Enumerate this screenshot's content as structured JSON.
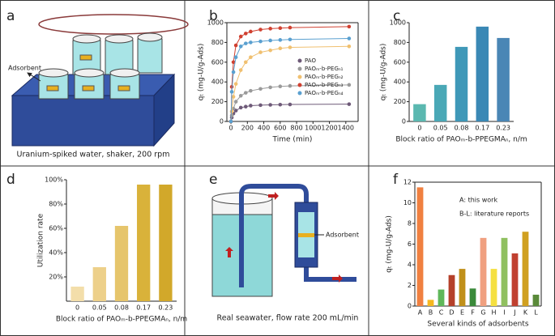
{
  "illustrations": [
    {
      "panel": "a",
      "label": "Adsorbent",
      "caption": "Uranium-spiked water, shaker, 200 rpm"
    },
    {
      "panel": "e",
      "label": "Adsorbent",
      "caption": "Real seawater, flow rate 200 mL/min"
    }
  ],
  "chart_data": [
    {
      "panel": "b",
      "type": "line",
      "frame": true,
      "xlabel": "Time (min)",
      "ylabel": "qₜ (mg-U/g-Ads)",
      "x": [
        0,
        10,
        30,
        60,
        120,
        180,
        240,
        360,
        480,
        600,
        720,
        1440
      ],
      "xlim": [
        -50,
        1550
      ],
      "xticks": [
        0,
        200,
        400,
        600,
        800,
        1000,
        1200,
        1400
      ],
      "ylim": [
        0,
        1000
      ],
      "yticks": [
        0,
        200,
        400,
        600,
        800,
        1000
      ],
      "series": [
        {
          "name": "PAO",
          "color": "#6e5a78",
          "values": [
            0,
            40,
            80,
            110,
            140,
            150,
            160,
            165,
            168,
            170,
            172,
            175
          ]
        },
        {
          "name": "PAOₘ-b-PEGₙ₁",
          "color": "#9a9a9a",
          "values": [
            0,
            60,
            130,
            200,
            260,
            290,
            310,
            330,
            345,
            355,
            360,
            370
          ]
        },
        {
          "name": "PAOₘ-b-PEGₙ₂",
          "color": "#f0c070",
          "values": [
            0,
            100,
            250,
            380,
            520,
            600,
            650,
            700,
            720,
            740,
            750,
            760
          ]
        },
        {
          "name": "PAOₘ-b-PEGₙ₃",
          "color": "#d04030",
          "values": [
            0,
            350,
            600,
            770,
            860,
            890,
            910,
            930,
            940,
            945,
            950,
            960
          ]
        },
        {
          "name": "PAOₘ-b-PEGₙ₄",
          "color": "#5aa0d0",
          "values": [
            0,
            300,
            500,
            650,
            760,
            790,
            800,
            810,
            820,
            825,
            830,
            840
          ]
        }
      ]
    },
    {
      "panel": "c",
      "type": "bar",
      "frame": false,
      "xlabel": "Block ratio of PAOₘ-b-PPEGMAₙ, n/m",
      "ylabel": "qₜ (mg-U/g-Ads)",
      "categories": [
        "0",
        "0.05",
        "0.08",
        "0.17",
        "0.23"
      ],
      "values": [
        175,
        370,
        755,
        960,
        845
      ],
      "colors": [
        "#5bb8b0",
        "#4aa8b6",
        "#3f98b8",
        "#3a88b5",
        "#4a86b5"
      ],
      "ylim": [
        0,
        1000
      ],
      "yticks": [
        0,
        200,
        400,
        600,
        800,
        1000
      ]
    },
    {
      "panel": "d",
      "type": "bar",
      "frame": false,
      "xlabel": "Block ratio of PAOₘ-b-PPEGMAₙ, n/m",
      "ylabel": "Utilization rate",
      "categories": [
        "0",
        "0.05",
        "0.08",
        "0.17",
        "0.23"
      ],
      "values": [
        12,
        28,
        62,
        96,
        96
      ],
      "colors": [
        "#f3deaa",
        "#edd08a",
        "#e6c56c",
        "#d9b23a",
        "#d2a82a"
      ],
      "ylim": [
        0,
        100
      ],
      "yticks": [
        {
          "value": 20,
          "label": "20%"
        },
        {
          "value": 40,
          "label": "40%"
        },
        {
          "value": 60,
          "label": "60%"
        },
        {
          "value": 80,
          "label": "80%"
        },
        {
          "value": 100,
          "label": "100%"
        }
      ]
    },
    {
      "panel": "f",
      "type": "bar",
      "frame": true,
      "xlabel": "Several kinds of adsorbents",
      "ylabel": "qₜ (mg-U/g-Ads)",
      "categories": [
        "A",
        "B",
        "C",
        "D",
        "E",
        "F",
        "G",
        "H",
        "I",
        "J",
        "K",
        "L"
      ],
      "values": [
        11.5,
        0.6,
        1.6,
        3.0,
        3.6,
        1.7,
        6.6,
        3.6,
        6.6,
        5.1,
        7.2,
        1.1
      ],
      "colors": [
        "#f08040",
        "#f5b820",
        "#5fb85a",
        "#b5402a",
        "#c0901a",
        "#3a8a3a",
        "#f0a080",
        "#f5e040",
        "#90c060",
        "#c04030",
        "#d0a020",
        "#5a8a3a"
      ],
      "ylim": [
        0,
        12
      ],
      "yticks": [
        0,
        2,
        4,
        6,
        8,
        10,
        12
      ],
      "annotations": [
        "A: this work",
        "B-L: literature reports"
      ]
    }
  ]
}
